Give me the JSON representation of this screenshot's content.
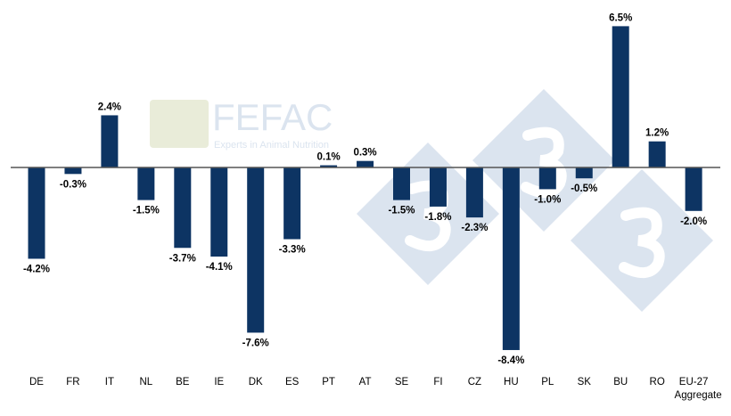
{
  "watermark": {
    "logo_text": "FEFAC",
    "tagline": "Experts in Animal Nutrition",
    "badge_glyph": "3"
  },
  "chart_data": {
    "type": "bar",
    "title": "",
    "xlabel": "",
    "ylabel": "",
    "categories": [
      "DE",
      "FR",
      "IT",
      "NL",
      "BE",
      "IE",
      "DK",
      "ES",
      "PT",
      "AT",
      "SE",
      "FI",
      "CZ",
      "HU",
      "PL",
      "SK",
      "BU",
      "RO",
      "EU-27\nAggregate"
    ],
    "values": [
      -4.2,
      -0.3,
      2.4,
      -1.5,
      -3.7,
      -4.1,
      -7.6,
      -3.3,
      0.1,
      0.3,
      -1.5,
      -1.8,
      -2.3,
      -8.4,
      -1.0,
      -0.5,
      6.5,
      1.2,
      -2.0
    ],
    "data_labels": [
      "-4.2%",
      "-0.3%",
      "2.4%",
      "-1.5%",
      "-3.7%",
      "-4.1%",
      "-7.6%",
      "-3.3%",
      "0.1%",
      "0.3%",
      "-1.5%",
      "-1.8%",
      "-2.3%",
      "-8.4%",
      "-1.0%",
      "-0.5%",
      "6.5%",
      "1.2%",
      "-2.0%"
    ],
    "ylim": [
      -9,
      7
    ],
    "grid": false,
    "y_axis_visible": false,
    "bar_color": "#0d3463",
    "watermark_color": "#dbe4ef"
  }
}
